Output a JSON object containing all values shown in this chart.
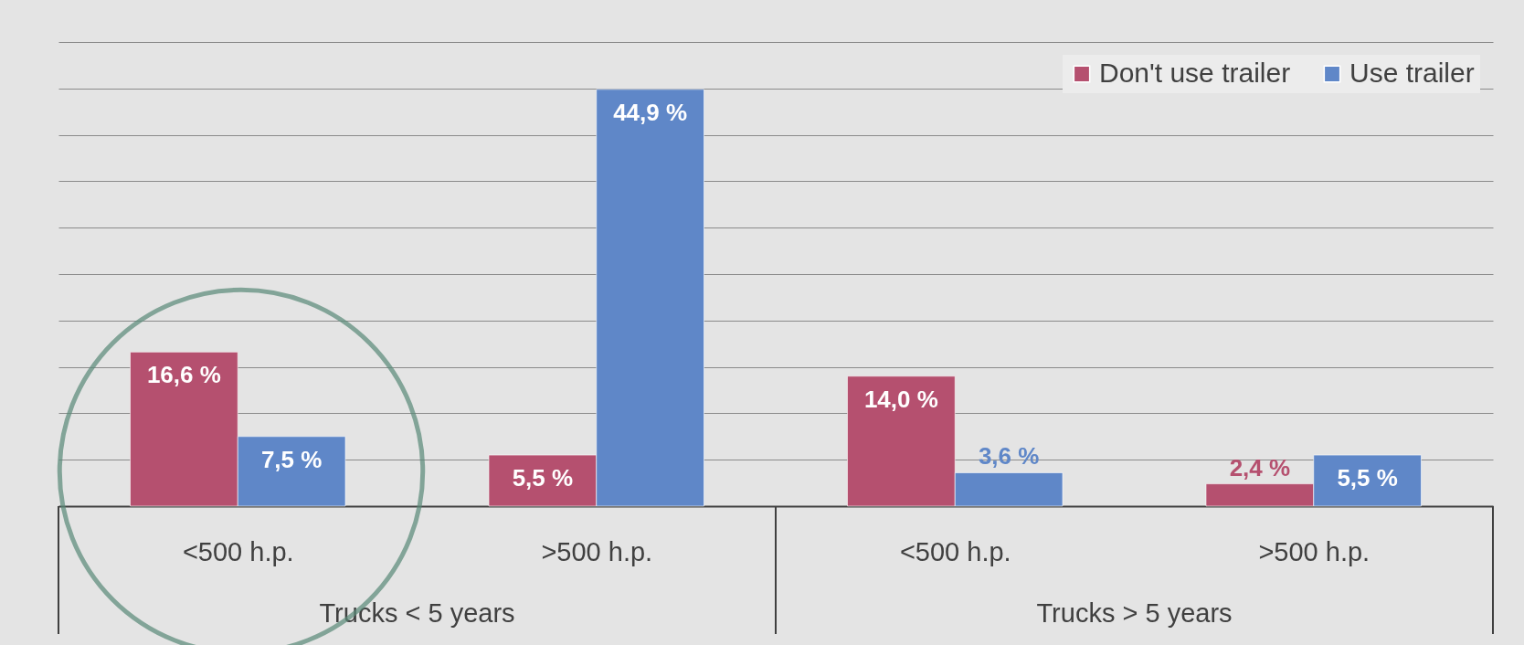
{
  "chart_data": {
    "type": "bar",
    "categories": [
      "<500 h.p.",
      ">500 h.p.",
      "<500 h.p.",
      ">500 h.p."
    ],
    "series": [
      {
        "name": "Don't use trailer",
        "color": "#b5506f",
        "values": [
          16.6,
          5.5,
          14.0,
          2.4
        ],
        "value_labels": [
          "16,6 %",
          "5,5 %",
          "14,0 %",
          "2,4 %"
        ]
      },
      {
        "name": "Use trailer",
        "color": "#5f87c8",
        "values": [
          7.5,
          44.9,
          3.6,
          5.5
        ],
        "value_labels": [
          "7,5 %",
          "44,9 %",
          "3,6 %",
          "5,5 %"
        ]
      }
    ],
    "annotations": [
      "Trucks < 5 years",
      "Trucks > 5 years"
    ],
    "ylim": [
      0,
      50
    ],
    "yticks": [
      {
        "value": 0,
        "label": null
      },
      {
        "value": 5,
        "label": null
      },
      {
        "value": 10,
        "label": null
      },
      {
        "value": 15,
        "label": null
      },
      {
        "value": 20,
        "label": null
      },
      {
        "value": 25,
        "label": null
      },
      {
        "value": 30,
        "label": null
      },
      {
        "value": 35,
        "label": null
      },
      {
        "value": 40,
        "label": null
      },
      {
        "value": 45,
        "label": null
      },
      {
        "value": 50,
        "label": null
      }
    ],
    "tick_labels": "x",
    "grid": "y",
    "legend": "top right"
  }
}
